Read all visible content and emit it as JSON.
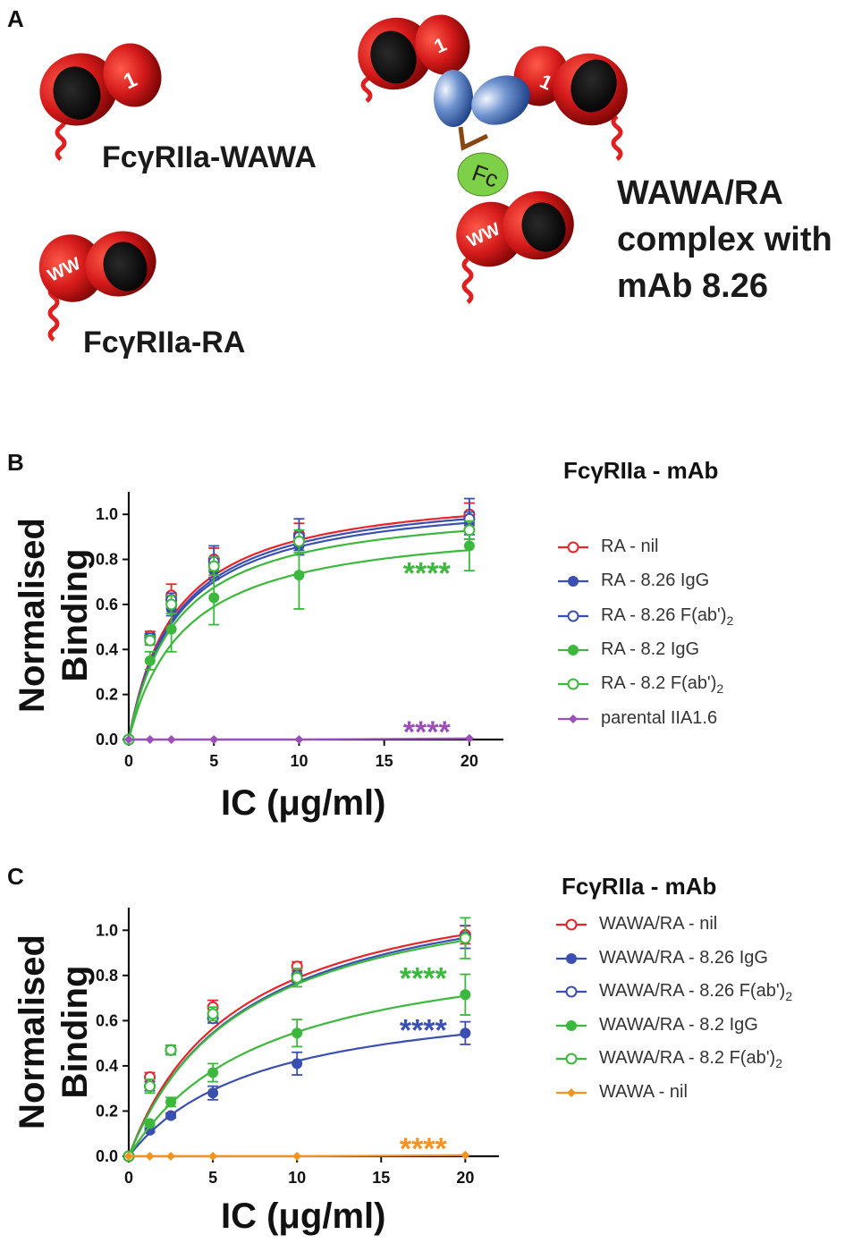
{
  "panel_a": {
    "letter": "A",
    "label_wawa": "FcγRIIa-WAWA",
    "label_ra": "FcγRIIa-RA",
    "complex_label": [
      "WAWA/RA",
      "complex with",
      "mAb 8.26"
    ],
    "domain_one": "1",
    "domain_ww": "WW",
    "fc": "Fc",
    "colors": {
      "receptor": "#d42020",
      "receptor_dark": "#8a0a0a",
      "fab": "#2f5ea8",
      "fc": "#7ed048",
      "hinge": "#8b4513"
    }
  },
  "chart_data": [
    {
      "panel": "B",
      "type": "line",
      "xlabel": "IC (μg/ml)",
      "ylabel": [
        "Normalised",
        "Binding"
      ],
      "x_ticks": [
        "0",
        "5",
        "10",
        "15",
        "20"
      ],
      "y_ticks": [
        "0.0",
        "0.2",
        "0.4",
        "0.6",
        "0.8",
        "1.0"
      ],
      "xlim": [
        0,
        22
      ],
      "ylim": [
        0,
        1.1
      ],
      "legend_title": "FcγRIIa - mAb",
      "x": [
        0,
        1.25,
        2.5,
        5,
        10,
        20
      ],
      "series": [
        {
          "name": "RA - nil",
          "sub": "",
          "color": "#e8232a",
          "marker": "open-circle",
          "values": [
            0,
            0.46,
            0.64,
            0.8,
            0.91,
            1.0
          ],
          "err": [
            0,
            0.02,
            0.05,
            0.05,
            0.05,
            0.05
          ],
          "fit": [
            1.13,
            2.75
          ]
        },
        {
          "name": "RA - 8.26 IgG",
          "sub": "",
          "color": "#3a4fb0",
          "marker": "filled-circle",
          "values": [
            0,
            0.44,
            0.58,
            0.75,
            0.86,
            0.96
          ],
          "err": [
            0,
            0.02,
            0.03,
            0.04,
            0.02,
            0.05
          ],
          "fit": [
            1.1,
            2.85
          ]
        },
        {
          "name": "RA - 8.26 F(ab')",
          "sub": "2",
          "color": "#3a4fb0",
          "marker": "open-circle",
          "values": [
            0,
            0.45,
            0.62,
            0.79,
            0.9,
            0.98
          ],
          "err": [
            0,
            0.02,
            0.03,
            0.07,
            0.08,
            0.09
          ],
          "fit": [
            1.12,
            2.85
          ]
        },
        {
          "name": "RA - 8.2 IgG",
          "sub": "",
          "color": "#3cb83c",
          "marker": "filled-circle",
          "values": [
            0,
            0.35,
            0.49,
            0.63,
            0.73,
            0.86
          ],
          "err": [
            0,
            0.04,
            0.1,
            0.12,
            0.15,
            0.11
          ],
          "fit": [
            0.98,
            3.3
          ]
        },
        {
          "name": "RA - 8.2 F(ab')",
          "sub": "2",
          "color": "#3cb83c",
          "marker": "open-circle",
          "values": [
            0,
            0.44,
            0.6,
            0.77,
            0.88,
            0.93
          ],
          "err": [
            0,
            0.02,
            0.04,
            0.04,
            0.05,
            0.04
          ],
          "fit": [
            1.06,
            2.85
          ]
        },
        {
          "name": "parental IIA1.6",
          "sub": "",
          "color": "#9b4fb8",
          "marker": "diamond",
          "values": [
            0,
            0.0,
            0.0,
            0.0,
            0.0,
            0.005
          ],
          "err": [
            0,
            0,
            0,
            0,
            0,
            0
          ],
          "fit": null
        }
      ],
      "annotations": [
        {
          "text": "****",
          "x": 17.5,
          "y": 0.74,
          "color": "#3cb83c"
        },
        {
          "text": "****",
          "x": 17.5,
          "y": 0.035,
          "color": "#9b4fb8"
        }
      ]
    },
    {
      "panel": "C",
      "type": "line",
      "xlabel": "IC (μg/ml)",
      "ylabel": [
        "Normalised",
        "Binding"
      ],
      "x_ticks": [
        "0",
        "5",
        "10",
        "15",
        "20"
      ],
      "y_ticks": [
        "0.0",
        "0.2",
        "0.4",
        "0.6",
        "0.8",
        "1.0"
      ],
      "xlim": [
        0,
        22
      ],
      "ylim": [
        0,
        1.1
      ],
      "legend_title": "FcγRIIa - mAb",
      "x": [
        0,
        1.25,
        2.5,
        5,
        10,
        20
      ],
      "series": [
        {
          "name": "WAWA/RA - nil",
          "sub": "",
          "color": "#e8232a",
          "marker": "open-circle",
          "values": [
            0,
            0.35,
            0.47,
            0.66,
            0.84,
            0.98
          ],
          "err": [
            0,
            0.02,
            0.02,
            0.03,
            0.02,
            0.04
          ],
          "fit": [
            1.3,
            6.5
          ]
        },
        {
          "name": "WAWA/RA - 8.26 IgG",
          "sub": "",
          "color": "#3a4fb0",
          "marker": "filled-circle",
          "values": [
            0,
            0.115,
            0.18,
            0.28,
            0.41,
            0.545
          ],
          "err": [
            0,
            0.01,
            0.01,
            0.03,
            0.05,
            0.05
          ],
          "fit": [
            0.75,
            7.8
          ]
        },
        {
          "name": "WAWA/RA - 8.26 F(ab')",
          "sub": "2",
          "color": "#3a4fb0",
          "marker": "open-circle",
          "values": [
            0,
            0.31,
            0.47,
            0.61,
            0.8,
            0.97
          ],
          "err": [
            0,
            0.02,
            0.02,
            0.02,
            0.03,
            0.05
          ],
          "fit": [
            1.3,
            6.9
          ]
        },
        {
          "name": "WAWA/RA - 8.2 IgG",
          "sub": "",
          "color": "#3cb83c",
          "marker": "filled-circle",
          "values": [
            0,
            0.145,
            0.24,
            0.37,
            0.545,
            0.715
          ],
          "err": [
            0,
            0.01,
            0.02,
            0.04,
            0.06,
            0.09
          ],
          "fit": [
            1.0,
            8.2
          ]
        },
        {
          "name": "WAWA/RA - 8.2 F(ab')",
          "sub": "2",
          "color": "#3cb83c",
          "marker": "open-circle",
          "values": [
            0,
            0.31,
            0.47,
            0.63,
            0.79,
            0.965
          ],
          "err": [
            0,
            0.03,
            0.02,
            0.03,
            0.04,
            0.09
          ],
          "fit": [
            1.28,
            6.8
          ]
        },
        {
          "name": "WAWA - nil",
          "sub": "",
          "color": "#f39321",
          "marker": "diamond",
          "values": [
            0,
            0.0,
            0.0,
            0.0,
            0.0,
            0.005
          ],
          "err": [
            0,
            0,
            0,
            0,
            0,
            0
          ],
          "fit": null
        }
      ],
      "annotations": [
        {
          "text": "****",
          "x": 17.5,
          "y": 0.79,
          "color": "#3cb83c"
        },
        {
          "text": "****",
          "x": 17.5,
          "y": 0.56,
          "color": "#3a4fb0"
        },
        {
          "text": "****",
          "x": 17.5,
          "y": 0.035,
          "color": "#f39321"
        }
      ]
    }
  ]
}
